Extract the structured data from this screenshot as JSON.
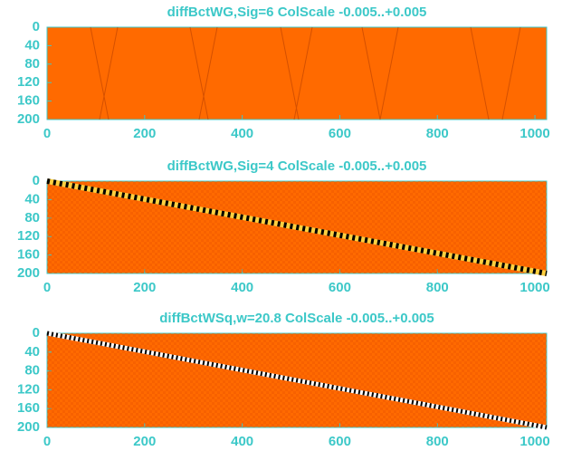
{
  "chart_data": [
    {
      "type": "heatmap",
      "title": "diffBctWG,Sig=6 ColScale -0.005..+0.005",
      "color": "#ff6a00",
      "xlim": [
        0,
        1024
      ],
      "ylim": [
        0,
        200
      ],
      "y_inverted": true,
      "xticks": [
        0,
        200,
        400,
        600,
        800,
        1000
      ],
      "yticks": [
        0,
        40,
        80,
        120,
        160,
        200
      ]
    },
    {
      "type": "heatmap",
      "title": "diffBctWG,Sig=4 ColScale -0.005..+0.005",
      "color": "#ff6a00",
      "xlim": [
        0,
        1024
      ],
      "ylim": [
        0,
        200
      ],
      "y_inverted": true,
      "xticks": [
        0,
        200,
        400,
        600,
        800,
        1000
      ],
      "yticks": [
        0,
        40,
        80,
        120,
        160,
        200
      ]
    },
    {
      "type": "heatmap",
      "title": "diffBctWSq,w=20.8 ColScale -0.005..+0.005",
      "color": "#ff6a00",
      "xlim": [
        0,
        1024
      ],
      "ylim": [
        0,
        200
      ],
      "y_inverted": true,
      "xticks": [
        0,
        200,
        400,
        600,
        800,
        1000
      ],
      "yticks": [
        0,
        40,
        80,
        120,
        160,
        200
      ]
    }
  ]
}
